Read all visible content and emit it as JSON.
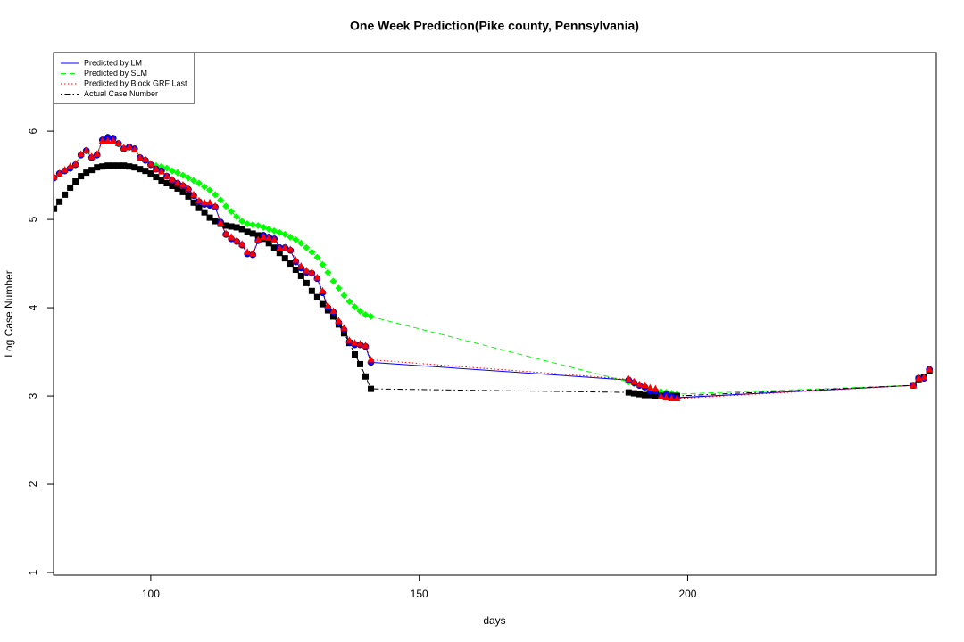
{
  "chart_data": {
    "type": "line",
    "title": "One Week Prediction(Pike county, Pennsylvania)",
    "x_label": "days",
    "y_label": "Log Case Number",
    "xlim": [
      81.9,
      246.3
    ],
    "ylim": [
      0.97,
      6.89
    ],
    "xticks": [
      100,
      150,
      200
    ],
    "yticks": [
      1,
      2,
      3,
      4,
      5,
      6
    ],
    "legend": "top-left",
    "x": [
      82,
      83,
      84,
      85,
      86,
      87,
      88,
      89,
      90,
      91,
      92,
      93,
      94,
      95,
      96,
      97,
      98,
      99,
      100,
      101,
      102,
      103,
      104,
      105,
      106,
      107,
      108,
      109,
      110,
      111,
      112,
      113,
      114,
      115,
      116,
      117,
      118,
      119,
      120,
      121,
      122,
      123,
      124,
      125,
      126,
      127,
      128,
      129,
      130,
      131,
      132,
      133,
      134,
      135,
      136,
      137,
      138,
      139,
      140,
      141,
      189,
      190,
      191,
      192,
      193,
      194,
      195,
      196,
      197,
      198,
      242,
      243,
      244,
      245
    ],
    "series": [
      {
        "name": "Predicted by LM",
        "color": "#0000ff",
        "line": "solid",
        "marker": "circle",
        "values": [
          5.47,
          5.52,
          5.55,
          5.58,
          5.62,
          5.73,
          5.78,
          5.7,
          5.73,
          5.9,
          5.93,
          5.92,
          5.86,
          5.8,
          5.82,
          5.8,
          5.7,
          5.67,
          5.62,
          5.57,
          5.55,
          5.49,
          5.44,
          5.41,
          5.38,
          5.34,
          5.27,
          5.2,
          5.17,
          5.16,
          5.14,
          4.97,
          4.83,
          4.78,
          4.75,
          4.71,
          4.61,
          4.6,
          4.76,
          4.82,
          4.8,
          4.78,
          4.68,
          4.68,
          4.65,
          4.52,
          4.45,
          4.4,
          4.39,
          4.33,
          4.17,
          4.0,
          3.95,
          3.83,
          3.75,
          3.61,
          3.58,
          3.58,
          3.56,
          3.38,
          3.18,
          3.15,
          3.12,
          3.1,
          3.05,
          3.05,
          3.0,
          3.02,
          3.0,
          2.98,
          3.12,
          3.2,
          3.2,
          3.3
        ]
      },
      {
        "name": "Predicted by SLM",
        "color": "#00ff00",
        "line": "dashed",
        "marker": "diamond",
        "values": [
          5.47,
          5.52,
          5.55,
          5.58,
          5.62,
          5.73,
          5.78,
          5.7,
          5.73,
          5.9,
          5.93,
          5.92,
          5.86,
          5.8,
          5.82,
          5.8,
          5.7,
          5.67,
          5.62,
          5.61,
          5.6,
          5.58,
          5.55,
          5.53,
          5.5,
          5.47,
          5.44,
          5.41,
          5.37,
          5.33,
          5.28,
          5.22,
          5.15,
          5.09,
          5.03,
          4.98,
          4.95,
          4.94,
          4.93,
          4.91,
          4.89,
          4.87,
          4.85,
          4.83,
          4.8,
          4.77,
          4.73,
          4.68,
          4.63,
          4.57,
          4.49,
          4.4,
          4.3,
          4.22,
          4.14,
          4.07,
          4.01,
          3.96,
          3.92,
          3.9,
          3.16,
          3.14,
          3.12,
          3.1,
          3.08,
          3.06,
          3.05,
          3.04,
          3.03,
          3.02,
          3.12,
          3.19,
          3.21,
          3.28
        ]
      },
      {
        "name": "Predicted by Block GRF Last",
        "color": "#ff0000",
        "line": "dotted",
        "marker": "triangle",
        "values": [
          5.48,
          5.52,
          5.56,
          5.6,
          5.63,
          5.74,
          5.78,
          5.71,
          5.74,
          5.89,
          5.89,
          5.89,
          5.86,
          5.81,
          5.82,
          5.79,
          5.7,
          5.68,
          5.63,
          5.57,
          5.54,
          5.49,
          5.45,
          5.41,
          5.39,
          5.35,
          5.28,
          5.21,
          5.19,
          5.19,
          5.15,
          4.96,
          4.84,
          4.8,
          4.76,
          4.72,
          4.63,
          4.61,
          4.77,
          4.8,
          4.79,
          4.77,
          4.67,
          4.68,
          4.66,
          4.54,
          4.47,
          4.42,
          4.4,
          4.34,
          4.19,
          4.02,
          3.96,
          3.85,
          3.77,
          3.63,
          3.6,
          3.59,
          3.57,
          3.41,
          3.19,
          3.16,
          3.13,
          3.12,
          3.09,
          3.08,
          2.99,
          2.98,
          2.97,
          2.97,
          3.12,
          3.2,
          3.21,
          3.3
        ]
      },
      {
        "name": "Actual Case Number",
        "color": "#000000",
        "line": "dotdash",
        "marker": "square",
        "values": [
          5.12,
          5.2,
          5.28,
          5.36,
          5.43,
          5.49,
          5.53,
          5.56,
          5.59,
          5.6,
          5.61,
          5.61,
          5.61,
          5.61,
          5.6,
          5.59,
          5.57,
          5.55,
          5.52,
          5.48,
          5.44,
          5.41,
          5.38,
          5.35,
          5.31,
          5.26,
          5.19,
          5.13,
          5.08,
          5.02,
          4.98,
          4.95,
          4.93,
          4.92,
          4.91,
          4.89,
          4.86,
          4.84,
          4.82,
          4.78,
          4.73,
          4.68,
          4.62,
          4.56,
          4.5,
          4.43,
          4.36,
          4.28,
          4.19,
          4.12,
          4.04,
          3.97,
          3.9,
          3.81,
          3.71,
          3.6,
          3.47,
          3.36,
          3.22,
          3.08,
          3.04,
          3.03,
          3.02,
          3.01,
          3.01,
          3.0,
          3.0,
          3.0,
          3.0,
          3.0,
          3.12,
          3.19,
          3.21,
          3.28
        ]
      }
    ]
  }
}
